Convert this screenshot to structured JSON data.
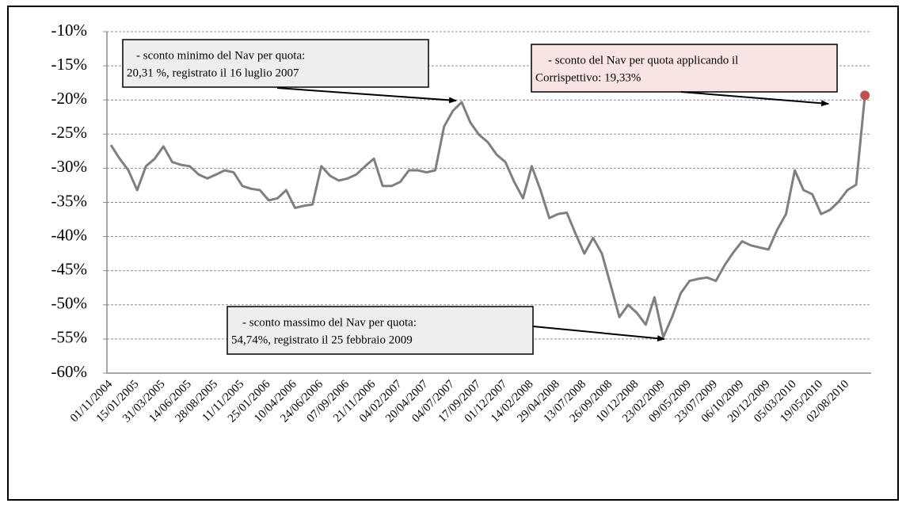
{
  "chart_data": {
    "type": "line",
    "categories": [
      "01/11/2004",
      null,
      null,
      "15/01/2005",
      null,
      null,
      "31/03/2005",
      null,
      null,
      "14/06/2005",
      null,
      null,
      "28/08/2005",
      null,
      null,
      "11/11/2005",
      null,
      null,
      "25/01/2006",
      null,
      null,
      "10/04/2006",
      null,
      null,
      "24/06/2006",
      null,
      null,
      "07/09/2006",
      null,
      null,
      "21/11/2006",
      null,
      null,
      "04/02/2007",
      null,
      null,
      "20/04/2007",
      null,
      null,
      "04/07/2007",
      null,
      null,
      "17/09/2007",
      null,
      null,
      "01/12/2007",
      null,
      null,
      "14/02/2008",
      null,
      null,
      "29/04/2008",
      null,
      null,
      "13/07/2008",
      null,
      null,
      "26/09/2008",
      null,
      null,
      "10/12/2008",
      null,
      null,
      "23/02/2009",
      null,
      null,
      "09/05/2009",
      null,
      null,
      "23/07/2009",
      null,
      null,
      "06/10/2009",
      null,
      null,
      "20/12/2009",
      null,
      null,
      "05/03/2010",
      null,
      null,
      "19/05/2010",
      null,
      null,
      "02/08/2010",
      null,
      null
    ],
    "series": [
      {
        "color": "#7f7f7f",
        "end_marker_color": "#c0504d",
        "values": [
          -26.6,
          -28.6,
          -30.3,
          -33.2,
          -29.7,
          -28.6,
          -26.8,
          -29.1,
          -29.5,
          -29.7,
          -30.9,
          -31.5,
          -30.9,
          -30.3,
          -30.6,
          -32.6,
          -33,
          -33.2,
          -34.7,
          -34.4,
          -33.2,
          -35.8,
          -35.5,
          -35.3,
          -29.7,
          -31.1,
          -31.8,
          -31.5,
          -30.9,
          -29.7,
          -28.6,
          -32.6,
          -32.6,
          -32,
          -30.3,
          -30.3,
          -30.6,
          -30.3,
          -23.9,
          -21.6,
          -20.31,
          -23.3,
          -25.1,
          -26.2,
          -28,
          -29.1,
          -32,
          -34.4,
          -29.7,
          -33.2,
          -37.3,
          -36.7,
          -36.5,
          -39.6,
          -42.5,
          -40.2,
          -42.5,
          -47.1,
          -51.8,
          -50,
          -51.2,
          -52.9,
          -48.9,
          -54.74,
          -51.8,
          -48.3,
          -46.5,
          -46.2,
          -46,
          -46.5,
          -44.2,
          -42.3,
          -40.7,
          -41.3,
          -41.6,
          -41.9,
          -39,
          -36.7,
          -30.3,
          -33.2,
          -33.8,
          -36.7,
          -36.1,
          -34.9,
          -33.2,
          -32.4,
          -19.33
        ]
      }
    ],
    "ylim": [
      -60,
      -10
    ],
    "yticks": [
      {
        "value": -10,
        "label": "-10%"
      },
      {
        "value": -15,
        "label": "-15%"
      },
      {
        "value": -20,
        "label": "-20%"
      },
      {
        "value": -25,
        "label": "-25%"
      },
      {
        "value": -30,
        "label": "-30%"
      },
      {
        "value": -35,
        "label": "-35%"
      },
      {
        "value": -40,
        "label": "-40%"
      },
      {
        "value": -45,
        "label": "-45%"
      },
      {
        "value": -50,
        "label": "-50%"
      },
      {
        "value": -55,
        "label": "-55%"
      },
      {
        "value": -60,
        "label": "-60%"
      }
    ],
    "grid": true,
    "annotations": [
      {
        "lines": [
          "-   sconto minimo del Nav per quota:",
          "20,31 %, registrato il 16 luglio 2007"
        ]
      },
      {
        "lines": [
          "-   sconto del Nav per quota applicando il",
          "Corrispettivo: 19,33%"
        ]
      },
      {
        "lines": [
          "-   sconto massimo del Nav per quota:",
          "54,74%, registrato il 25 febbraio 2009"
        ]
      }
    ]
  }
}
